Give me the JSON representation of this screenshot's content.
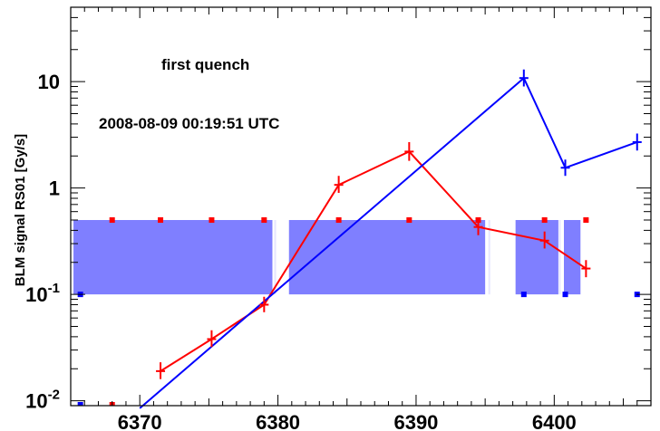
{
  "chart_data": {
    "type": "line",
    "title": "",
    "xlabel": "",
    "ylabel": "BLM signal RS01 [Gy/s]",
    "xlim": [
      6365,
      6407
    ],
    "ylim": [
      0.009,
      50
    ],
    "yscale": "log",
    "x_ticks": [
      {
        "value": 6370,
        "label": "6370"
      },
      {
        "value": 6380,
        "label": "6380"
      },
      {
        "value": 6390,
        "label": "6390"
      },
      {
        "value": 6400,
        "label": "6400"
      }
    ],
    "y_ticks": [
      {
        "value": 0.01,
        "base": "10",
        "exp": "-2"
      },
      {
        "value": 0.1,
        "base": "10",
        "exp": "-1"
      },
      {
        "value": 1,
        "label": "1"
      },
      {
        "value": 10,
        "label": "10"
      }
    ],
    "annotations": [
      "first quench",
      "2008-08-09 00:19:51 UTC"
    ],
    "colors": {
      "red": "#ff0000",
      "blue": "#0000ff",
      "band": "#7f7fff",
      "band_edge": "#ffffff"
    },
    "series": [
      {
        "color": "#ff0000",
        "points": [
          {
            "x": 6371.5,
            "y": 0.019,
            "ylo": 0.016,
            "yhi": 0.023
          },
          {
            "x": 6375.2,
            "y": 0.038,
            "ylo": 0.032,
            "yhi": 0.046
          },
          {
            "x": 6379.0,
            "y": 0.08,
            "ylo": 0.068,
            "yhi": 0.095
          },
          {
            "x": 6384.4,
            "y": 1.07,
            "ylo": 0.9,
            "yhi": 1.3
          },
          {
            "x": 6389.5,
            "y": 2.2,
            "ylo": 1.8,
            "yhi": 2.7
          },
          {
            "x": 6394.5,
            "y": 0.43,
            "ylo": 0.36,
            "yhi": 0.52
          },
          {
            "x": 6399.3,
            "y": 0.32,
            "ylo": 0.27,
            "yhi": 0.39
          },
          {
            "x": 6402.3,
            "y": 0.175,
            "ylo": 0.145,
            "yhi": 0.21
          }
        ]
      },
      {
        "color": "#0000ff",
        "points": [
          {
            "x": 6370.0,
            "y": 0.0085
          },
          {
            "x": 6397.8,
            "y": 10.8,
            "ylo": 9.0,
            "yhi": 13.0
          },
          {
            "x": 6400.8,
            "y": 1.55,
            "ylo": 1.3,
            "yhi": 1.85
          },
          {
            "x": 6406.0,
            "y": 2.7,
            "ylo": 2.25,
            "yhi": 3.25
          }
        ]
      }
    ],
    "bands": [
      {
        "x0": 6365.2,
        "x1": 6379.6,
        "y0": 0.1,
        "y1": 0.5
      },
      {
        "x0": 6380.8,
        "x1": 6395.0,
        "y0": 0.1,
        "y1": 0.5
      },
      {
        "x0": 6397.2,
        "x1": 6400.3,
        "y0": 0.1,
        "y1": 0.5
      },
      {
        "x0": 6400.7,
        "x1": 6401.9,
        "y0": 0.1,
        "y1": 0.5
      }
    ],
    "band_edges": [
      6379.8,
      6395.3,
      6400.4
    ],
    "markers": {
      "red_top": {
        "y": 0.5,
        "x": [
          6368,
          6371.5,
          6375.2,
          6379.0,
          6384.4,
          6389.5,
          6394.5,
          6399.3,
          6402.3
        ]
      },
      "blue_bottom": {
        "y": 0.1,
        "x": [
          6365.7,
          6397.8,
          6400.8,
          6406.0
        ]
      },
      "bottom_dots": {
        "y": 0.0092,
        "red_x": [
          6368
        ],
        "blue_x": [
          6365.7
        ]
      }
    }
  }
}
